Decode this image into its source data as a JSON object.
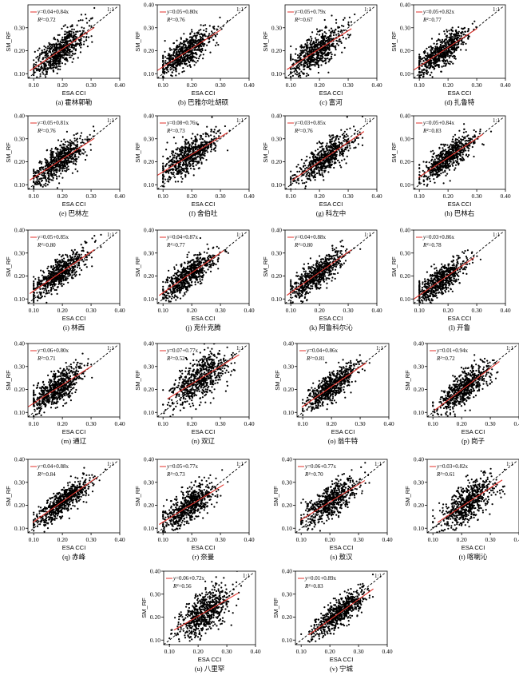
{
  "figure": {
    "colors": {
      "points": "#000000",
      "fit_line": "#e0322b",
      "identity_line": "#000000",
      "axes": "#000000"
    },
    "shared": {
      "xlabel": "ESA CCI",
      "ylabel": "SM_RF",
      "identity_label": "1:1",
      "fit_label": "y",
      "r2_label": "R²"
    }
  },
  "chart_data": [
    {
      "type": "scatter",
      "caption": "(a) 霍林郭勒",
      "fit": {
        "intercept": 0.04,
        "slope": 0.84,
        "r2": 0.72
      },
      "equation": "=0.04+0.84x",
      "r2_text": "=0.72",
      "xlim": [
        0.08,
        0.4
      ],
      "ylim": [
        0.08,
        0.4
      ],
      "xticks": [
        "0.10",
        "0.20",
        "0.30",
        "0.40"
      ],
      "yticks": [
        "0.10",
        "0.20",
        "0.30"
      ],
      "x_center": 0.19,
      "x_spread": 0.045
    },
    {
      "type": "scatter",
      "caption": "(b) 巴雅尔吐胡硕",
      "fit": {
        "intercept": 0.05,
        "slope": 0.8,
        "r2": 0.76
      },
      "equation": "=0.05+0.80x",
      "r2_text": "=0.76",
      "xlim": [
        0.08,
        0.4
      ],
      "ylim": [
        0.08,
        0.4
      ],
      "xticks": [
        "0.10",
        "0.20",
        "0.30",
        "0.40"
      ],
      "yticks": [
        "0.10",
        "0.20",
        "0.30",
        "0.40"
      ],
      "x_center": 0.18,
      "x_spread": 0.045
    },
    {
      "type": "scatter",
      "caption": "(c) 富河",
      "fit": {
        "intercept": 0.05,
        "slope": 0.79,
        "r2": 0.67
      },
      "equation": "=0.05+0.79x",
      "r2_text": "=0.67",
      "xlim": [
        0.08,
        0.4
      ],
      "ylim": [
        0.08,
        0.4
      ],
      "xticks": [
        "0.10",
        "0.20",
        "0.30",
        "0.40"
      ],
      "yticks": [
        "0.10",
        "0.20",
        "0.30"
      ],
      "x_center": 0.19,
      "x_spread": 0.045
    },
    {
      "type": "scatter",
      "caption": "(d) 扎鲁特",
      "fit": {
        "intercept": 0.05,
        "slope": 0.82,
        "r2": 0.77
      },
      "equation": "=0.05+0.82x",
      "r2_text": "=0.77",
      "xlim": [
        0.08,
        0.4
      ],
      "ylim": [
        0.08,
        0.4
      ],
      "xticks": [
        "0.10",
        "0.20",
        "0.30",
        "0.40"
      ],
      "yticks": [
        "0.10",
        "0.20",
        "0.30",
        "0.40"
      ],
      "x_center": 0.18,
      "x_spread": 0.045
    },
    {
      "type": "scatter",
      "caption": "(e) 巴林左",
      "fit": {
        "intercept": 0.05,
        "slope": 0.81,
        "r2": 0.76
      },
      "equation": "=0.05+0.81x",
      "r2_text": "=0.76",
      "xlim": [
        0.08,
        0.4
      ],
      "ylim": [
        0.08,
        0.4
      ],
      "xticks": [
        "0.10",
        "0.20",
        "0.30",
        "0.40"
      ],
      "yticks": [
        "0.10",
        "0.20",
        "0.30",
        "0.40"
      ],
      "x_center": 0.19,
      "x_spread": 0.045
    },
    {
      "type": "scatter",
      "caption": "(f) 舍伯吐",
      "fit": {
        "intercept": 0.08,
        "slope": 0.76,
        "r2": 0.73
      },
      "equation": "=0.08+0.76x",
      "r2_text": "=0.73",
      "xlim": [
        0.08,
        0.4
      ],
      "ylim": [
        0.08,
        0.4
      ],
      "xticks": [
        "0.10",
        "0.20",
        "0.30",
        "0.40"
      ],
      "yticks": [
        "0.10",
        "0.20",
        "0.30",
        "0.40"
      ],
      "x_center": 0.19,
      "x_spread": 0.05
    },
    {
      "type": "scatter",
      "caption": "(g) 科左中",
      "fit": {
        "intercept": 0.03,
        "slope": 0.85,
        "r2": 0.76
      },
      "equation": "=0.03+0.85x",
      "r2_text": "=0.76",
      "xlim": [
        0.08,
        0.4
      ],
      "ylim": [
        0.08,
        0.4
      ],
      "xticks": [
        "0.10",
        "0.20",
        "0.30",
        "0.40"
      ],
      "yticks": [
        "0.10",
        "0.20",
        "0.30",
        "0.40"
      ],
      "x_center": 0.22,
      "x_spread": 0.05
    },
    {
      "type": "scatter",
      "caption": "(h) 巴林右",
      "fit": {
        "intercept": 0.05,
        "slope": 0.84,
        "r2": 0.83
      },
      "equation": "=0.05+0.84x",
      "r2_text": "=0.83",
      "xlim": [
        0.08,
        0.4
      ],
      "ylim": [
        0.08,
        0.4
      ],
      "xticks": [
        "0.10",
        "0.20",
        "0.30",
        "0.40"
      ],
      "yticks": [
        "0.10",
        "0.20",
        "0.30",
        "0.40"
      ],
      "x_center": 0.2,
      "x_spread": 0.045
    },
    {
      "type": "scatter",
      "caption": "(i) 林西",
      "fit": {
        "intercept": 0.05,
        "slope": 0.85,
        "r2": 0.8
      },
      "equation": "=0.05+0.85x",
      "r2_text": "=0.80",
      "xlim": [
        0.08,
        0.4
      ],
      "ylim": [
        0.08,
        0.4
      ],
      "xticks": [
        "0.10",
        "0.20",
        "0.30",
        "0.40"
      ],
      "yticks": [
        "0.10",
        "0.20",
        "0.30",
        "0.40"
      ],
      "x_center": 0.19,
      "x_spread": 0.045
    },
    {
      "type": "scatter",
      "caption": "(j) 克什克腾",
      "fit": {
        "intercept": 0.04,
        "slope": 0.87,
        "r2": 0.77
      },
      "equation": "=0.04+0.87x",
      "r2_text": "=0.77",
      "xlim": [
        0.08,
        0.4
      ],
      "ylim": [
        0.08,
        0.4
      ],
      "xticks": [
        "0.10",
        "0.20",
        "0.30",
        "0.40"
      ],
      "yticks": [
        "0.10",
        "0.20",
        "0.30",
        "0.40"
      ],
      "x_center": 0.19,
      "x_spread": 0.045
    },
    {
      "type": "scatter",
      "caption": "(k) 阿鲁科尔沁",
      "fit": {
        "intercept": 0.04,
        "slope": 0.88,
        "r2": 0.8
      },
      "equation": "=0.04+0.88x",
      "r2_text": "=0.80",
      "xlim": [
        0.08,
        0.4
      ],
      "ylim": [
        0.08,
        0.4
      ],
      "xticks": [
        "0.10",
        "0.20",
        "0.30",
        "0.40"
      ],
      "yticks": [
        "0.10",
        "0.20",
        "0.30",
        "0.40"
      ],
      "x_center": 0.19,
      "x_spread": 0.045
    },
    {
      "type": "scatter",
      "caption": "(l) 开鲁",
      "fit": {
        "intercept": 0.03,
        "slope": 0.86,
        "r2": 0.78
      },
      "equation": "=0.03+0.86x",
      "r2_text": "=0.78",
      "xlim": [
        0.08,
        0.4
      ],
      "ylim": [
        0.08,
        0.4
      ],
      "xticks": [
        "0.10",
        "0.20",
        "0.30",
        "0.40"
      ],
      "yticks": [
        "0.10",
        "0.20",
        "0.30",
        "0.40"
      ],
      "x_center": 0.17,
      "x_spread": 0.045
    },
    {
      "type": "scatter",
      "caption": "(m) 通辽",
      "fit": {
        "intercept": 0.06,
        "slope": 0.8,
        "r2": 0.71
      },
      "equation": "=0.06+0.80x",
      "r2_text": "=0.71",
      "xlim": [
        0.08,
        0.4
      ],
      "ylim": [
        0.08,
        0.4
      ],
      "xticks": [
        "0.10",
        "0.20",
        "0.30",
        "0.40"
      ],
      "yticks": [
        "0.10",
        "0.20",
        "0.30",
        "0.40"
      ],
      "x_center": 0.18,
      "x_spread": 0.045
    },
    {
      "type": "scatter",
      "caption": "(n) 双辽",
      "fit": {
        "intercept": 0.07,
        "slope": 0.77,
        "r2": 0.52
      },
      "equation": "=0.07+0.77x",
      "r2_text": "=0.52",
      "xlim": [
        0.08,
        0.4
      ],
      "ylim": [
        0.08,
        0.4
      ],
      "xticks": [
        "0.10",
        "0.20",
        "0.30",
        "0.40"
      ],
      "yticks": [
        "0.10",
        "0.20",
        "0.30",
        "0.40"
      ],
      "x_center": 0.23,
      "x_spread": 0.05
    },
    {
      "type": "scatter",
      "caption": "(o) 翁牛特",
      "fit": {
        "intercept": 0.04,
        "slope": 0.86,
        "r2": 0.81
      },
      "equation": "=0.04+0.86x",
      "r2_text": "=0.81",
      "xlim": [
        0.08,
        0.4
      ],
      "ylim": [
        0.08,
        0.4
      ],
      "xticks": [
        "0.10",
        "0.20",
        "0.30",
        "0.40"
      ],
      "yticks": [
        "0.10",
        "0.20",
        "0.30",
        "0.40"
      ],
      "x_center": 0.2,
      "x_spread": 0.045
    },
    {
      "type": "scatter",
      "caption": "(p) 岗子",
      "fit": {
        "intercept": 0.01,
        "slope": 0.94,
        "r2": 0.72
      },
      "equation": "=0.01+0.94x",
      "r2_text": "=0.72",
      "xlim": [
        0.08,
        0.4
      ],
      "ylim": [
        0.08,
        0.4
      ],
      "xticks": [
        "0.10",
        "0.20",
        "0.30",
        "0.40"
      ],
      "yticks": [
        "0.10",
        "0.20",
        "0.30",
        "0.40"
      ],
      "x_center": 0.21,
      "x_spread": 0.045
    },
    {
      "type": "scatter",
      "caption": "(q) 赤峰",
      "fit": {
        "intercept": 0.04,
        "slope": 0.88,
        "r2": 0.84
      },
      "equation": "=0.04+0.88x",
      "r2_text": "=0.84",
      "xlim": [
        0.08,
        0.4
      ],
      "ylim": [
        0.08,
        0.4
      ],
      "xticks": [
        "0.10",
        "0.20",
        "0.30",
        "0.40"
      ],
      "yticks": [
        "0.10",
        "0.20",
        "0.30",
        "0.40"
      ],
      "x_center": 0.2,
      "x_spread": 0.045
    },
    {
      "type": "scatter",
      "caption": "(r) 奈曼",
      "fit": {
        "intercept": 0.05,
        "slope": 0.77,
        "r2": 0.73
      },
      "equation": "=0.05+0.77x",
      "r2_text": "=0.73",
      "xlim": [
        0.08,
        0.4
      ],
      "ylim": [
        0.08,
        0.4
      ],
      "xticks": [
        "0.10",
        "0.20",
        "0.30",
        "0.40"
      ],
      "yticks": [
        "0.10",
        "0.20",
        "0.30",
        "0.40"
      ],
      "x_center": 0.19,
      "x_spread": 0.045
    },
    {
      "type": "scatter",
      "caption": "(s) 敖汉",
      "fit": {
        "intercept": 0.06,
        "slope": 0.77,
        "r2": 0.7
      },
      "equation": "=0.06+0.77x",
      "r2_text": "=0.70",
      "xlim": [
        0.08,
        0.4
      ],
      "ylim": [
        0.08,
        0.4
      ],
      "xticks": [
        "0.10",
        "0.20",
        "0.30",
        "0.40"
      ],
      "yticks": [
        "0.10",
        "0.20",
        "0.30",
        "0.40"
      ],
      "x_center": 0.2,
      "x_spread": 0.045
    },
    {
      "type": "scatter",
      "caption": "(t) 喀喇沁",
      "fit": {
        "intercept": 0.03,
        "slope": 0.82,
        "r2": 0.61
      },
      "equation": "=0.03+0.82x",
      "r2_text": "=0.61",
      "xlim": [
        0.08,
        0.4
      ],
      "ylim": [
        0.08,
        0.4
      ],
      "xticks": [
        "0.10",
        "0.20",
        "0.30",
        "0.40"
      ],
      "yticks": [
        "0.10",
        "0.20",
        "0.30",
        "0.40"
      ],
      "x_center": 0.22,
      "x_spread": 0.045
    },
    {
      "type": "scatter",
      "caption": "(u) 八里罕",
      "fit": {
        "intercept": 0.06,
        "slope": 0.72,
        "r2": 0.56
      },
      "equation": "=0.06+0.72x",
      "r2_text": "=0.56",
      "xlim": [
        0.08,
        0.4
      ],
      "ylim": [
        0.08,
        0.4
      ],
      "xticks": [
        "0.10",
        "0.20",
        "0.30",
        "0.40"
      ],
      "yticks": [
        "0.10",
        "0.20",
        "0.30",
        "0.40"
      ],
      "x_center": 0.22,
      "x_spread": 0.045
    },
    {
      "type": "scatter",
      "caption": "(v) 宁城",
      "fit": {
        "intercept": 0.01,
        "slope": 0.89,
        "r2": 0.83
      },
      "equation": "=0.01+0.89x",
      "r2_text": "=0.83",
      "xlim": [
        0.08,
        0.4
      ],
      "ylim": [
        0.08,
        0.4
      ],
      "xticks": [
        "0.10",
        "0.20",
        "0.30",
        "0.40"
      ],
      "yticks": [
        "0.10",
        "0.20",
        "0.30",
        "0.40"
      ],
      "x_center": 0.23,
      "x_spread": 0.045
    }
  ]
}
